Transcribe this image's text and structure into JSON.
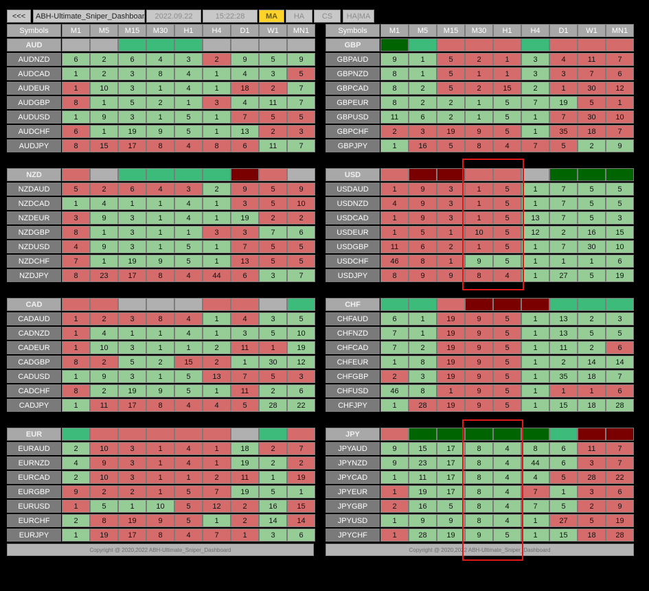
{
  "toolbar": {
    "back_label": "<<<",
    "title": "ABH-Ultimate_Sniper_Dashboard",
    "date": "2022.09.22",
    "time": "15:22:28",
    "buttons": [
      "MA",
      "HA",
      "CS",
      "HA|MA"
    ],
    "active_button": "MA"
  },
  "header": {
    "symbols_label": "Symbols",
    "timeframes": [
      "M1",
      "M5",
      "M15",
      "M30",
      "H1",
      "H4",
      "D1",
      "W1",
      "MN1"
    ]
  },
  "colors": {
    "red": "#d56b6b",
    "green": "#96cc96",
    "gray": "#b0b0b0",
    "dark_red": "#7a0000",
    "med_green": "#3cbb7a",
    "dark_green": "#006400",
    "highlight": "#e01818"
  },
  "blocks": [
    {
      "currency": "AUD",
      "status": [
        "gray",
        "gray",
        "mg",
        "mg",
        "mg",
        "gray",
        "gray",
        "gray",
        "gray"
      ],
      "pairs": [
        {
          "symbol": "AUDNZD",
          "v": [
            6,
            2,
            6,
            4,
            3,
            2,
            9,
            5,
            9
          ],
          "c": "gggggrggg"
        },
        {
          "symbol": "AUDCAD",
          "v": [
            1,
            2,
            3,
            8,
            4,
            1,
            4,
            3,
            5
          ],
          "c": "ggggggggr"
        },
        {
          "symbol": "AUDEUR",
          "v": [
            1,
            10,
            3,
            1,
            4,
            1,
            18,
            2,
            7
          ],
          "c": "rgggggrrg"
        },
        {
          "symbol": "AUDGBP",
          "v": [
            8,
            1,
            5,
            2,
            1,
            3,
            4,
            11,
            7
          ],
          "c": "rggggrggg"
        },
        {
          "symbol": "AUDUSD",
          "v": [
            1,
            9,
            3,
            1,
            5,
            1,
            7,
            5,
            5
          ],
          "c": "gggggg rrr"
        },
        {
          "symbol": "AUDCHF",
          "v": [
            6,
            1,
            19,
            9,
            5,
            1,
            13,
            2,
            3
          ],
          "c": "rggggggrr"
        },
        {
          "symbol": "AUDJPY",
          "v": [
            8,
            15,
            17,
            8,
            4,
            8,
            6,
            11,
            7
          ],
          "c": "rrrrrrrgg"
        }
      ]
    },
    {
      "currency": "GBP",
      "status": [
        "dg",
        "mg",
        "red",
        "red",
        "red",
        "mg",
        "red",
        "red",
        "red"
      ],
      "pairs": [
        {
          "symbol": "GBPAUD",
          "v": [
            9,
            1,
            5,
            2,
            1,
            3,
            4,
            11,
            7
          ],
          "c": "ggrrrgrrr"
        },
        {
          "symbol": "GBPNZD",
          "v": [
            8,
            1,
            5,
            1,
            1,
            3,
            3,
            7,
            6
          ],
          "c": "ggrrrgrrr"
        },
        {
          "symbol": "GBPCAD",
          "v": [
            8,
            2,
            5,
            2,
            15,
            2,
            1,
            30,
            12
          ],
          "c": "ggrrrgrrr"
        },
        {
          "symbol": "GBPEUR",
          "v": [
            8,
            2,
            2,
            1,
            5,
            7,
            19,
            5,
            1
          ],
          "c": "gggggggrr"
        },
        {
          "symbol": "GBPUSD",
          "v": [
            11,
            6,
            2,
            1,
            5,
            1,
            7,
            30,
            10
          ],
          "c": "ggggggrrr"
        },
        {
          "symbol": "GBPCHF",
          "v": [
            2,
            3,
            19,
            9,
            5,
            1,
            35,
            18,
            7
          ],
          "c": "rrrrrgrrr"
        },
        {
          "symbol": "GBPJPY",
          "v": [
            1,
            16,
            5,
            8,
            4,
            7,
            5,
            2,
            9
          ],
          "c": "grrrrrrgg"
        }
      ]
    },
    {
      "currency": "NZD",
      "status": [
        "red",
        "gray",
        "mg",
        "mg",
        "mg",
        "mg",
        "dr",
        "red",
        "gray"
      ],
      "pairs": [
        {
          "symbol": "NZDAUD",
          "v": [
            5,
            2,
            6,
            4,
            3,
            2,
            9,
            5,
            9
          ],
          "c": "rrrrrgrrr"
        },
        {
          "symbol": "NZDCAD",
          "v": [
            1,
            4,
            1,
            1,
            4,
            1,
            3,
            5,
            10
          ],
          "c": "ggggggrrr"
        },
        {
          "symbol": "NZDEUR",
          "v": [
            3,
            9,
            3,
            1,
            4,
            1,
            19,
            2,
            2
          ],
          "c": "rggggggrrg"
        },
        {
          "symbol": "NZDGBP",
          "v": [
            8,
            1,
            3,
            1,
            1,
            3,
            3,
            7,
            6
          ],
          "c": "rggggrrgg"
        },
        {
          "symbol": "NZDUSD",
          "v": [
            4,
            9,
            3,
            1,
            5,
            1,
            7,
            5,
            5
          ],
          "c": "rggggg rrr"
        },
        {
          "symbol": "NZDCHF",
          "v": [
            7,
            1,
            19,
            9,
            5,
            1,
            13,
            5,
            5
          ],
          "c": "rggggg rrr"
        },
        {
          "symbol": "NZDJPY",
          "v": [
            8,
            23,
            17,
            8,
            4,
            44,
            6,
            3,
            7
          ],
          "c": "rrrrrrrgg"
        }
      ]
    },
    {
      "currency": "USD",
      "status": [
        "red",
        "dr",
        "dr",
        "red",
        "red",
        "gray",
        "dg",
        "dg",
        "dg"
      ],
      "pairs": [
        {
          "symbol": "USDAUD",
          "v": [
            1,
            9,
            3,
            1,
            5,
            1,
            7,
            5,
            5
          ],
          "c": "rrrrrggggg"
        },
        {
          "symbol": "USDNZD",
          "v": [
            4,
            9,
            3,
            1,
            5,
            1,
            7,
            5,
            5
          ],
          "c": "rrrrrgggg"
        },
        {
          "symbol": "USDCAD",
          "v": [
            1,
            9,
            3,
            1,
            5,
            13,
            7,
            5,
            3
          ],
          "c": "rrrrrgggg"
        },
        {
          "symbol": "USDEUR",
          "v": [
            1,
            5,
            1,
            10,
            5,
            12,
            2,
            16,
            15
          ],
          "c": "rrrrrgggg"
        },
        {
          "symbol": "USDGBP",
          "v": [
            11,
            6,
            2,
            1,
            5,
            1,
            7,
            30,
            10
          ],
          "c": "rrrrrgggg"
        },
        {
          "symbol": "USDCHF",
          "v": [
            46,
            8,
            1,
            9,
            5,
            1,
            1,
            1,
            6
          ],
          "c": "rrrggggggg"
        },
        {
          "symbol": "USDJPY",
          "v": [
            8,
            9,
            9,
            8,
            4,
            1,
            27,
            5,
            19
          ],
          "c": "rrrrrgggg"
        }
      ]
    },
    {
      "currency": "CAD",
      "status": [
        "red",
        "red",
        "gray",
        "gray",
        "gray",
        "red",
        "red",
        "gray",
        "mg"
      ],
      "pairs": [
        {
          "symbol": "CADAUD",
          "v": [
            1,
            2,
            3,
            8,
            4,
            1,
            4,
            3,
            5
          ],
          "c": "rrrrrgrgg"
        },
        {
          "symbol": "CADNZD",
          "v": [
            1,
            4,
            1,
            1,
            4,
            1,
            3,
            5,
            10
          ],
          "c": "rggggggggg"
        },
        {
          "symbol": "CADEUR",
          "v": [
            1,
            10,
            3,
            1,
            1,
            2,
            11,
            1,
            19
          ],
          "c": "rgggggrrgr"
        },
        {
          "symbol": "CADGBP",
          "v": [
            8,
            2,
            5,
            2,
            15,
            2,
            1,
            30,
            12
          ],
          "c": "rrggrrggg"
        },
        {
          "symbol": "CADUSD",
          "v": [
            1,
            9,
            3,
            1,
            5,
            13,
            7,
            5,
            3
          ],
          "c": "ggggg rrrr"
        },
        {
          "symbol": "CADCHF",
          "v": [
            8,
            2,
            19,
            9,
            5,
            1,
            11,
            2,
            6
          ],
          "c": "rggggg rgg"
        },
        {
          "symbol": "CADJPY",
          "v": [
            1,
            11,
            17,
            8,
            4,
            4,
            5,
            28,
            22
          ],
          "c": "grrrrrrgg"
        }
      ]
    },
    {
      "currency": "CHF",
      "status": [
        "mg",
        "mg",
        "red",
        "dr",
        "dr",
        "dr",
        "mg",
        "mg",
        "mg"
      ],
      "pairs": [
        {
          "symbol": "CHFAUD",
          "v": [
            6,
            1,
            19,
            9,
            5,
            1,
            13,
            2,
            3
          ],
          "c": "ggrrrgggg"
        },
        {
          "symbol": "CHFNZD",
          "v": [
            7,
            1,
            19,
            9,
            5,
            1,
            13,
            5,
            5
          ],
          "c": "ggrrrgggg"
        },
        {
          "symbol": "CHFCAD",
          "v": [
            7,
            2,
            19,
            9,
            5,
            1,
            11,
            2,
            6
          ],
          "c": "ggrrrgggr"
        },
        {
          "symbol": "CHFEUR",
          "v": [
            1,
            8,
            19,
            9,
            5,
            1,
            2,
            14,
            14
          ],
          "c": "ggrrrgggg"
        },
        {
          "symbol": "CHFGBP",
          "v": [
            2,
            3,
            19,
            9,
            5,
            1,
            35,
            18,
            7
          ],
          "c": "rgrrrgggg"
        },
        {
          "symbol": "CHFUSD",
          "v": [
            46,
            8,
            1,
            9,
            5,
            1,
            1,
            1,
            6
          ],
          "c": "ggrrrgrrr"
        },
        {
          "symbol": "CHFJPY",
          "v": [
            1,
            28,
            19,
            9,
            5,
            1,
            15,
            18,
            28
          ],
          "c": "grrrrgggg"
        }
      ]
    },
    {
      "currency": "EUR",
      "status": [
        "mg",
        "red",
        "red",
        "red",
        "red",
        "red",
        "gray",
        "mg",
        "red"
      ],
      "pairs": [
        {
          "symbol": "EURAUD",
          "v": [
            2,
            10,
            3,
            1,
            4,
            1,
            18,
            2,
            7
          ],
          "c": "grrrrr grr"
        },
        {
          "symbol": "EURNZD",
          "v": [
            4,
            9,
            3,
            1,
            4,
            1,
            19,
            2,
            2
          ],
          "c": "grrrrrggr"
        },
        {
          "symbol": "EURCAD",
          "v": [
            2,
            10,
            3,
            1,
            1,
            2,
            11,
            1,
            19
          ],
          "c": "grrrrrrgr"
        },
        {
          "symbol": "EURGBP",
          "v": [
            9,
            2,
            2,
            1,
            5,
            7,
            19,
            5,
            1
          ],
          "c": "rrrrrrggg"
        },
        {
          "symbol": "EURUSD",
          "v": [
            1,
            5,
            1,
            10,
            5,
            12,
            2,
            16,
            15
          ],
          "c": "rgggrr rgr"
        },
        {
          "symbol": "EURCHF",
          "v": [
            2,
            8,
            19,
            9,
            5,
            1,
            2,
            14,
            14
          ],
          "c": "grrrrgrgr"
        },
        {
          "symbol": "EURJPY",
          "v": [
            1,
            19,
            17,
            8,
            4,
            7,
            1,
            3,
            6
          ],
          "c": "grrrrrrgg"
        }
      ]
    },
    {
      "currency": "JPY",
      "status": [
        "red",
        "dg",
        "dg",
        "dg",
        "dg",
        "dg",
        "mg",
        "dr",
        "dr"
      ],
      "pairs": [
        {
          "symbol": "JPYAUD",
          "v": [
            9,
            15,
            17,
            8,
            4,
            8,
            6,
            11,
            7
          ],
          "c": "gggggggrr"
        },
        {
          "symbol": "JPYNZD",
          "v": [
            9,
            23,
            17,
            8,
            4,
            44,
            6,
            3,
            7
          ],
          "c": "gggggggrr"
        },
        {
          "symbol": "JPYCAD",
          "v": [
            1,
            11,
            17,
            8,
            4,
            4,
            5,
            28,
            22
          ],
          "c": "ggggggrrr"
        },
        {
          "symbol": "JPYEUR",
          "v": [
            1,
            19,
            17,
            8,
            4,
            7,
            1,
            3,
            6
          ],
          "c": "rggggrgrr"
        },
        {
          "symbol": "JPYGBP",
          "v": [
            2,
            16,
            5,
            8,
            4,
            7,
            5,
            2,
            9
          ],
          "c": "rggggggrr"
        },
        {
          "symbol": "JPYUSD",
          "v": [
            1,
            9,
            9,
            8,
            4,
            1,
            27,
            5,
            19
          ],
          "c": "ggggggrrr"
        },
        {
          "symbol": "JPYCHF",
          "v": [
            1,
            28,
            19,
            9,
            5,
            1,
            15,
            18,
            28
          ],
          "c": "rggggggrr"
        }
      ]
    }
  ],
  "footer": {
    "copyright": "Copyright @ 2020,2022 ABH-Ultimate_Sniper_Dashboard"
  }
}
